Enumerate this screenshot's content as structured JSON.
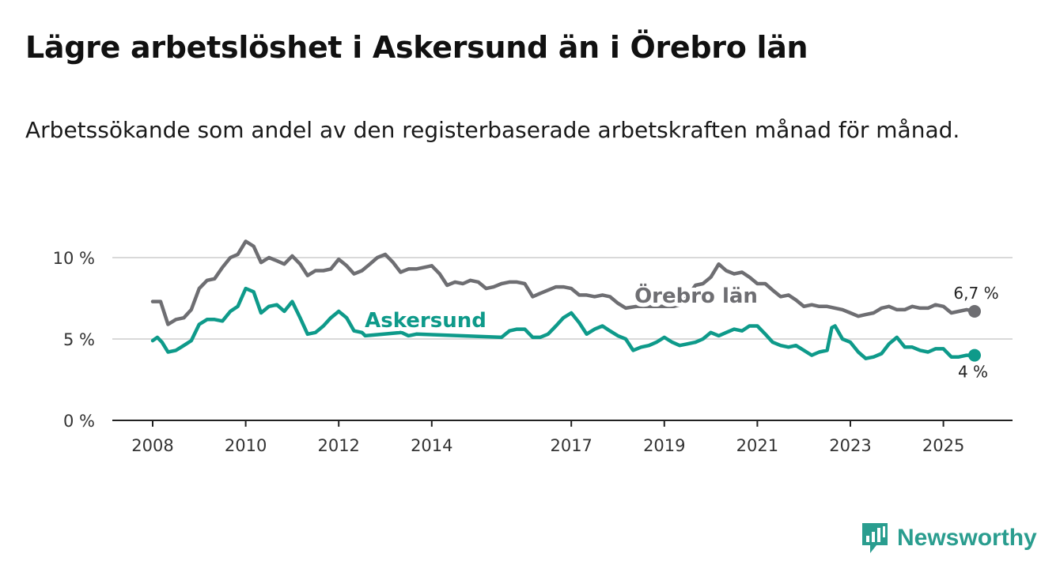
{
  "title": "Lägre arbetslöshet i Askersund än i Örebro län",
  "subtitle": "Arbetssökande som andel av den registerbaserade arbetskraften månad för månad.",
  "brand": {
    "name": "Newsworthy",
    "icon": "newsworthy-logo-icon",
    "color": "#2a9d8f"
  },
  "chart_data": {
    "type": "line",
    "title": "Lägre arbetslöshet i Askersund än i Örebro län",
    "xlabel": "",
    "ylabel": "",
    "x_ticks": [
      "2008",
      "2010",
      "2012",
      "2014",
      "2017",
      "2019",
      "2021",
      "2023",
      "2025"
    ],
    "y_ticks": [
      "0 %",
      "5 %",
      "10 %"
    ],
    "ylim": [
      0,
      12
    ],
    "xlim": [
      2007.1,
      2026.6
    ],
    "grid": true,
    "series": [
      {
        "name": "Örebro län",
        "color": "#6e6e72",
        "end_label": "6,7 %",
        "points": [
          [
            2008.0,
            7.3
          ],
          [
            2008.17,
            7.3
          ],
          [
            2008.33,
            5.9
          ],
          [
            2008.5,
            6.2
          ],
          [
            2008.67,
            6.3
          ],
          [
            2008.83,
            6.8
          ],
          [
            2009.0,
            8.1
          ],
          [
            2009.17,
            8.6
          ],
          [
            2009.33,
            8.7
          ],
          [
            2009.5,
            9.4
          ],
          [
            2009.67,
            10.0
          ],
          [
            2009.83,
            10.2
          ],
          [
            2010.0,
            11.0
          ],
          [
            2010.17,
            10.7
          ],
          [
            2010.33,
            9.7
          ],
          [
            2010.5,
            10.0
          ],
          [
            2010.67,
            9.8
          ],
          [
            2010.83,
            9.6
          ],
          [
            2011.0,
            10.1
          ],
          [
            2011.17,
            9.6
          ],
          [
            2011.33,
            8.9
          ],
          [
            2011.5,
            9.2
          ],
          [
            2011.67,
            9.2
          ],
          [
            2011.83,
            9.3
          ],
          [
            2012.0,
            9.9
          ],
          [
            2012.17,
            9.5
          ],
          [
            2012.33,
            9.0
          ],
          [
            2012.5,
            9.2
          ],
          [
            2012.67,
            9.6
          ],
          [
            2012.83,
            10.0
          ],
          [
            2013.0,
            10.2
          ],
          [
            2013.17,
            9.7
          ],
          [
            2013.33,
            9.1
          ],
          [
            2013.5,
            9.3
          ],
          [
            2013.67,
            9.3
          ],
          [
            2013.83,
            9.4
          ],
          [
            2014.0,
            9.5
          ],
          [
            2014.17,
            9.0
          ],
          [
            2014.33,
            8.3
          ],
          [
            2014.5,
            8.5
          ],
          [
            2014.67,
            8.4
          ],
          [
            2014.83,
            8.6
          ],
          [
            2015.0,
            8.5
          ],
          [
            2015.17,
            8.1
          ],
          [
            2015.33,
            8.2
          ],
          [
            2015.5,
            8.4
          ],
          [
            2015.67,
            8.5
          ],
          [
            2015.83,
            8.5
          ],
          [
            2016.0,
            8.4
          ],
          [
            2016.17,
            7.6
          ],
          [
            2016.33,
            7.8
          ],
          [
            2016.5,
            8.0
          ],
          [
            2016.67,
            8.2
          ],
          [
            2016.83,
            8.2
          ],
          [
            2017.0,
            8.1
          ],
          [
            2017.17,
            7.7
          ],
          [
            2017.33,
            7.7
          ],
          [
            2017.5,
            7.6
          ],
          [
            2017.67,
            7.7
          ],
          [
            2017.83,
            7.6
          ],
          [
            2018.0,
            7.2
          ],
          [
            2018.17,
            6.9
          ],
          [
            2018.4,
            7.0
          ],
          [
            2018.55,
            7.0
          ],
          [
            2019.2,
            7.0
          ],
          [
            2019.33,
            7.1
          ],
          [
            2019.5,
            7.6
          ],
          [
            2019.67,
            8.3
          ],
          [
            2019.83,
            8.4
          ],
          [
            2020.0,
            8.8
          ],
          [
            2020.17,
            9.6
          ],
          [
            2020.33,
            9.2
          ],
          [
            2020.5,
            9.0
          ],
          [
            2020.67,
            9.1
          ],
          [
            2020.83,
            8.8
          ],
          [
            2021.0,
            8.4
          ],
          [
            2021.17,
            8.4
          ],
          [
            2021.33,
            8.0
          ],
          [
            2021.5,
            7.6
          ],
          [
            2021.67,
            7.7
          ],
          [
            2021.83,
            7.4
          ],
          [
            2022.0,
            7.0
          ],
          [
            2022.17,
            7.1
          ],
          [
            2022.33,
            7.0
          ],
          [
            2022.5,
            7.0
          ],
          [
            2022.67,
            6.9
          ],
          [
            2022.83,
            6.8
          ],
          [
            2023.0,
            6.6
          ],
          [
            2023.17,
            6.4
          ],
          [
            2023.33,
            6.5
          ],
          [
            2023.5,
            6.6
          ],
          [
            2023.67,
            6.9
          ],
          [
            2023.83,
            7.0
          ],
          [
            2024.0,
            6.8
          ],
          [
            2024.17,
            6.8
          ],
          [
            2024.33,
            7.0
          ],
          [
            2024.5,
            6.9
          ],
          [
            2024.67,
            6.9
          ],
          [
            2024.83,
            7.1
          ],
          [
            2025.0,
            7.0
          ],
          [
            2025.17,
            6.6
          ],
          [
            2025.33,
            6.7
          ],
          [
            2025.5,
            6.8
          ],
          [
            2025.67,
            6.7
          ]
        ]
      },
      {
        "name": "Askersund",
        "color": "#0e9a8a",
        "end_label": "4 %",
        "points": [
          [
            2008.0,
            4.9
          ],
          [
            2008.1,
            5.1
          ],
          [
            2008.2,
            4.8
          ],
          [
            2008.33,
            4.2
          ],
          [
            2008.5,
            4.3
          ],
          [
            2008.67,
            4.6
          ],
          [
            2008.83,
            4.9
          ],
          [
            2009.0,
            5.9
          ],
          [
            2009.17,
            6.2
          ],
          [
            2009.33,
            6.2
          ],
          [
            2009.5,
            6.1
          ],
          [
            2009.67,
            6.7
          ],
          [
            2009.83,
            7.0
          ],
          [
            2010.0,
            8.1
          ],
          [
            2010.17,
            7.9
          ],
          [
            2010.33,
            6.6
          ],
          [
            2010.5,
            7.0
          ],
          [
            2010.67,
            7.1
          ],
          [
            2010.83,
            6.7
          ],
          [
            2011.0,
            7.3
          ],
          [
            2011.17,
            6.3
          ],
          [
            2011.33,
            5.3
          ],
          [
            2011.5,
            5.4
          ],
          [
            2011.67,
            5.8
          ],
          [
            2011.83,
            6.3
          ],
          [
            2012.0,
            6.7
          ],
          [
            2012.17,
            6.3
          ],
          [
            2012.33,
            5.5
          ],
          [
            2012.5,
            5.4
          ],
          [
            2012.57,
            5.2
          ],
          [
            2013.35,
            5.4
          ],
          [
            2013.5,
            5.2
          ],
          [
            2013.67,
            5.3
          ],
          [
            2015.5,
            5.1
          ],
          [
            2015.67,
            5.5
          ],
          [
            2015.83,
            5.6
          ],
          [
            2016.0,
            5.6
          ],
          [
            2016.17,
            5.1
          ],
          [
            2016.33,
            5.1
          ],
          [
            2016.5,
            5.3
          ],
          [
            2016.67,
            5.8
          ],
          [
            2016.83,
            6.3
          ],
          [
            2017.0,
            6.6
          ],
          [
            2017.17,
            6.0
          ],
          [
            2017.33,
            5.3
          ],
          [
            2017.5,
            5.6
          ],
          [
            2017.67,
            5.8
          ],
          [
            2017.83,
            5.5
          ],
          [
            2018.0,
            5.2
          ],
          [
            2018.17,
            5.0
          ],
          [
            2018.33,
            4.3
          ],
          [
            2018.5,
            4.5
          ],
          [
            2018.67,
            4.6
          ],
          [
            2018.83,
            4.8
          ],
          [
            2019.0,
            5.1
          ],
          [
            2019.17,
            4.8
          ],
          [
            2019.33,
            4.6
          ],
          [
            2019.5,
            4.7
          ],
          [
            2019.67,
            4.8
          ],
          [
            2019.83,
            5.0
          ],
          [
            2020.0,
            5.4
          ],
          [
            2020.17,
            5.2
          ],
          [
            2020.33,
            5.4
          ],
          [
            2020.5,
            5.6
          ],
          [
            2020.67,
            5.5
          ],
          [
            2020.83,
            5.8
          ],
          [
            2021.0,
            5.8
          ],
          [
            2021.17,
            5.3
          ],
          [
            2021.33,
            4.8
          ],
          [
            2021.5,
            4.6
          ],
          [
            2021.67,
            4.5
          ],
          [
            2021.83,
            4.6
          ],
          [
            2022.0,
            4.3
          ],
          [
            2022.17,
            4.0
          ],
          [
            2022.33,
            4.2
          ],
          [
            2022.5,
            4.3
          ],
          [
            2022.6,
            5.7
          ],
          [
            2022.67,
            5.8
          ],
          [
            2022.83,
            5.0
          ],
          [
            2023.0,
            4.8
          ],
          [
            2023.17,
            4.2
          ],
          [
            2023.33,
            3.8
          ],
          [
            2023.5,
            3.9
          ],
          [
            2023.67,
            4.1
          ],
          [
            2023.83,
            4.7
          ],
          [
            2024.0,
            5.1
          ],
          [
            2024.17,
            4.5
          ],
          [
            2024.33,
            4.5
          ],
          [
            2024.5,
            4.3
          ],
          [
            2024.67,
            4.2
          ],
          [
            2024.83,
            4.4
          ],
          [
            2025.0,
            4.4
          ],
          [
            2025.17,
            3.9
          ],
          [
            2025.33,
            3.9
          ],
          [
            2025.5,
            4.0
          ],
          [
            2025.67,
            4.0
          ]
        ]
      }
    ]
  }
}
